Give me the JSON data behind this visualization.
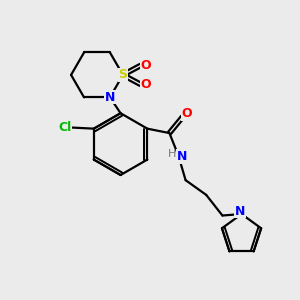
{
  "bg_color": "#ebebeb",
  "atom_colors": {
    "C": "#000000",
    "N": "#0000ff",
    "O": "#ff0000",
    "S": "#cccc00",
    "Cl": "#00bb00",
    "H": "#777777"
  },
  "bond_color": "#000000",
  "bond_width": 1.6,
  "figsize": [
    3.0,
    3.0
  ],
  "dpi": 100
}
